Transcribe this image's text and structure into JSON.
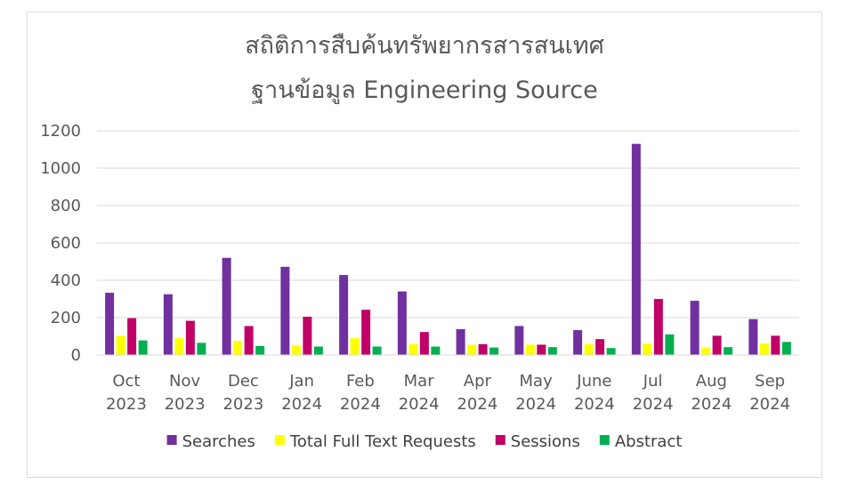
{
  "chart_data": {
    "type": "bar",
    "title_lines": [
      "สถิติการสืบค้นทรัพยากรสารสนเทศ",
      "ฐานข้อมูล Engineering Source"
    ],
    "categories": [
      [
        "Oct",
        "2023"
      ],
      [
        "Nov",
        "2023"
      ],
      [
        "Dec",
        "2023"
      ],
      [
        "Jan",
        "2024"
      ],
      [
        "Feb",
        "2024"
      ],
      [
        "Mar",
        "2024"
      ],
      [
        "Apr",
        "2024"
      ],
      [
        "May",
        "2024"
      ],
      [
        "June",
        "2024"
      ],
      [
        "Jul",
        "2024"
      ],
      [
        "Aug",
        "2024"
      ],
      [
        "Sep",
        "2024"
      ]
    ],
    "series": [
      {
        "name": "Searches",
        "color": "#7030a0",
        "values": [
          333,
          325,
          520,
          472,
          428,
          340,
          138,
          155,
          133,
          1130,
          290,
          192
        ]
      },
      {
        "name": "Total Full Text Requests",
        "color": "#ffff00",
        "values": [
          103,
          90,
          75,
          50,
          90,
          58,
          55,
          55,
          58,
          60,
          40,
          62
        ]
      },
      {
        "name": "Sessions",
        "color": "#c00066",
        "values": [
          197,
          183,
          155,
          205,
          242,
          123,
          58,
          55,
          85,
          300,
          103,
          103
        ]
      },
      {
        "name": "Abstract",
        "color": "#00b050",
        "values": [
          78,
          65,
          48,
          45,
          45,
          45,
          40,
          42,
          37,
          110,
          42,
          70
        ]
      }
    ],
    "y_ticks": [
      "0",
      "200",
      "400",
      "600",
      "800",
      "1000",
      "1200"
    ],
    "ylim": [
      0,
      1200
    ],
    "grid": true,
    "legend_position": "bottom"
  }
}
